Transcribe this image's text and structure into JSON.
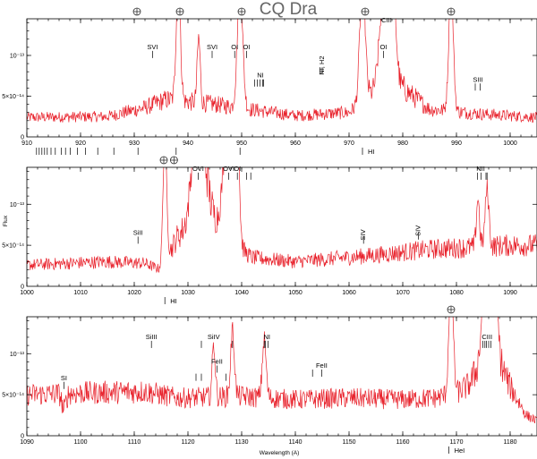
{
  "chart_data": {
    "type": "line",
    "title": "CQ Dra",
    "xlabel": "Wavelength (A)",
    "ylabel": "Flux",
    "earth_symbol": "⊕",
    "colors": {
      "spectrum": "#e8202a",
      "axes": "#000000",
      "title": "#666666"
    },
    "panels": [
      {
        "xlim": [
          910,
          1005
        ],
        "ylim": [
          0,
          1.45e-13
        ],
        "xticks": [
          910,
          920,
          930,
          940,
          950,
          960,
          970,
          980,
          990,
          1000
        ],
        "yticks": [
          {
            "v": 5e-14,
            "label": "5×10⁻¹⁴"
          },
          {
            "v": 1e-13,
            "label": "10⁻¹³"
          }
        ],
        "baseline": [
          [
            910,
            2.4e-14
          ],
          [
            925,
            2.5e-14
          ],
          [
            932,
            3.6e-14
          ],
          [
            936,
            4.6e-14
          ],
          [
            945,
            4e-14
          ],
          [
            960,
            2.6e-14
          ],
          [
            970,
            3e-14
          ],
          [
            974,
            5.2e-14
          ],
          [
            980,
            6e-14
          ],
          [
            985,
            3.4e-14
          ],
          [
            995,
            2.8e-14
          ],
          [
            1005,
            2.4e-14
          ]
        ],
        "features": [
          [
            938.2,
            0.55,
            1.5e-13
          ],
          [
            949.7,
            0.7,
            1.5e-13
          ],
          [
            972.5,
            0.7,
            1.5e-13
          ],
          [
            976.8,
            1.3,
            1.5e-13
          ],
          [
            977.8,
            1.0,
            1.5e-13
          ],
          [
            989,
            0.6,
            1.5e-13
          ],
          [
            942,
            0.4,
            8e-14
          ]
        ],
        "earth": [
          930.5,
          938.5,
          950,
          973,
          989
        ],
        "ids": [
          {
            "label": "SVI",
            "x": 933.4,
            "ticks": [
              933.4
            ],
            "y": 1.1e-13
          },
          {
            "label": "SVI",
            "x": 944.5,
            "ticks": [
              944.5
            ],
            "y": 1.1e-13
          },
          {
            "label": "OI",
            "x": 948.7,
            "ticks": [
              948.7
            ],
            "y": 1.1e-13
          },
          {
            "label": "OI",
            "x": 950.9,
            "ticks": [
              950.9
            ],
            "y": 1.1e-13
          },
          {
            "label": "NI",
            "x": 953.5,
            "ticks": [
              952.4,
              952.9,
              953.4,
              953.9,
              954.1
            ],
            "y": 7.5e-14
          },
          {
            "label": "NI, H2",
            "x": 965,
            "ticks": [
              964.6,
              965.0
            ],
            "y": 9e-14,
            "rotate": true
          },
          {
            "label": "OI",
            "x": 976.4,
            "ticks": [
              976.4
            ],
            "y": 1.1e-13
          },
          {
            "label": "CIII",
            "x": 977.0,
            "ticks": [],
            "y": 1.43e-13
          },
          {
            "label": "SIII",
            "x": 994,
            "ticks": [
              993.5,
              994.4
            ],
            "y": 7e-14
          }
        ],
        "below": {
          "label": "HI",
          "ticks": [
            911.8,
            912.3,
            912.8,
            913.3,
            913.8,
            914.5,
            915.3,
            916.4,
            917.2,
            918.1,
            919.4,
            920.9,
            923.2,
            926.2,
            930.7,
            937.8,
            949.7,
            972.5
          ]
        }
      },
      {
        "xlim": [
          1000,
          1095
        ],
        "ylim": [
          0,
          1.45e-13
        ],
        "xticks": [
          1000,
          1010,
          1020,
          1030,
          1040,
          1050,
          1060,
          1070,
          1080,
          1090
        ],
        "yticks": [
          {
            "v": 5e-14,
            "label": "5×10⁻¹⁴"
          },
          {
            "v": 1e-13,
            "label": "10⁻¹³"
          }
        ],
        "baseline": [
          [
            1000,
            2.6e-14
          ],
          [
            1015,
            3e-14
          ],
          [
            1022,
            2.8e-14
          ],
          [
            1025,
            2e-14
          ],
          [
            1028,
            6e-14
          ],
          [
            1031,
            8e-14
          ],
          [
            1034,
            1e-13
          ],
          [
            1036,
            6e-14
          ],
          [
            1042,
            3.5e-14
          ],
          [
            1050,
            3e-14
          ],
          [
            1065,
            3.8e-14
          ],
          [
            1075,
            4.5e-14
          ],
          [
            1090,
            5e-14
          ],
          [
            1095,
            5e-14
          ]
        ],
        "features": [
          [
            1025.7,
            0.5,
            1.5e-13
          ],
          [
            1031.9,
            1.4,
            1.5e-13
          ],
          [
            1037.6,
            1.4,
            1.5e-13
          ],
          [
            1039.2,
            0.5,
            1.3e-13
          ],
          [
            1084,
            0.4,
            6e-14
          ],
          [
            1085.7,
            0.5,
            7e-14
          ]
        ],
        "earth": [
          1025.5,
          1027.4
        ],
        "ids": [
          {
            "label": "SiII",
            "x": 1020.7,
            "ticks": [
              1020.7
            ],
            "y": 6.5e-14
          },
          {
            "label": "OVI",
            "x": 1031.9,
            "ticks": [
              1031.9
            ],
            "y": 1.43e-13
          },
          {
            "label": "OVI",
            "x": 1037.6,
            "ticks": [
              1037.6
            ],
            "y": 1.43e-13
          },
          {
            "label": "OI",
            "x": 1039.2,
            "ticks": [
              1039.2,
              1040.9,
              1041.7
            ],
            "y": 1.43e-13
          },
          {
            "label": "SIV",
            "x": 1062.7,
            "ticks": [
              1062.7
            ],
            "y": 6.5e-14,
            "rotate": true
          },
          {
            "label": "SIV",
            "x": 1072.9,
            "ticks": [
              1072.9
            ],
            "y": 7e-14,
            "rotate": true
          },
          {
            "label": "NII",
            "x": 1084.5,
            "ticks": [
              1083.9,
              1084.6,
              1085.5,
              1085.7
            ],
            "y": 1.43e-13
          }
        ],
        "below": {
          "label": "HI",
          "ticks": [
            1025.7
          ]
        }
      },
      {
        "xlim": [
          1090,
          1185
        ],
        "ylim": [
          0,
          1.45e-13
        ],
        "xticks": [
          1090,
          1100,
          1110,
          1120,
          1130,
          1140,
          1150,
          1160,
          1170,
          1180
        ],
        "yticks": [
          {
            "v": 5e-14,
            "label": "5×10⁻¹⁴"
          },
          {
            "v": 1e-13,
            "label": "10⁻¹³"
          }
        ],
        "baseline": [
          [
            1090,
            5e-14
          ],
          [
            1100,
            5.2e-14
          ],
          [
            1112,
            5.4e-14
          ],
          [
            1118,
            4.6e-14
          ],
          [
            1130,
            4.8e-14
          ],
          [
            1140,
            4.4e-14
          ],
          [
            1150,
            4.6e-14
          ],
          [
            1160,
            4.4e-14
          ],
          [
            1166,
            4.6e-14
          ],
          [
            1170,
            5.2e-14
          ],
          [
            1172,
            6e-14
          ],
          [
            1174,
            8e-14
          ],
          [
            1176,
            1.05e-13
          ],
          [
            1178,
            9e-14
          ],
          [
            1180,
            6e-14
          ],
          [
            1183,
            2.5e-14
          ],
          [
            1185,
            1.8e-14
          ]
        ],
        "features": [
          [
            1169,
            0.55,
            1.5e-13
          ],
          [
            1175.8,
            1.1,
            1.5e-13
          ],
          [
            1176.7,
            0.9,
            1.5e-13
          ],
          [
            1128.3,
            0.5,
            8e-14
          ],
          [
            1134.2,
            0.5,
            7e-14
          ],
          [
            1124.8,
            0.4,
            6.5e-14
          ],
          [
            1096.9,
            0.5,
            -2e-14
          ]
        ],
        "earth": [
          1169
        ],
        "ids": [
          {
            "label": "SI",
            "x": 1096.9,
            "ticks": [
              1096.9
            ],
            "y": 7e-14
          },
          {
            "label": "SiIII",
            "x": 1113.2,
            "ticks": [
              1113.2
            ],
            "y": 1.2e-13
          },
          {
            "label": "SiIV",
            "x": 1124.8,
            "ticks": [
              1122.5
            ],
            "y": 1.2e-13
          },
          {
            "label": "",
            "x": 1121.5,
            "ticks": [
              1121.5,
              1122.5
            ],
            "y": 8e-14
          },
          {
            "label": "FeII",
            "x": 1125.4,
            "ticks": [
              1125.4
            ],
            "y": 9e-14
          },
          {
            "label": "",
            "x": 1127.1,
            "ticks": [
              1127.1
            ],
            "y": 8e-14
          },
          {
            "label": "",
            "x": 1128.3,
            "ticks": [
              1128.3
            ],
            "y": 1.2e-13
          },
          {
            "label": "NI",
            "x": 1134.7,
            "ticks": [
              1134.2,
              1134.4,
              1134.9
            ],
            "y": 1.2e-13
          },
          {
            "label": "FeII",
            "x": 1144.9,
            "ticks": [
              1143.2,
              1144.9
            ],
            "y": 8.5e-14
          },
          {
            "label": "CIII",
            "x": 1175.7,
            "ticks": [
              1174.9,
              1175.3,
              1175.6,
              1176.0,
              1176.4
            ],
            "y": 1.2e-13
          }
        ],
        "below": {
          "label": "HeI",
          "ticks": [
            1168.6
          ]
        }
      }
    ]
  }
}
